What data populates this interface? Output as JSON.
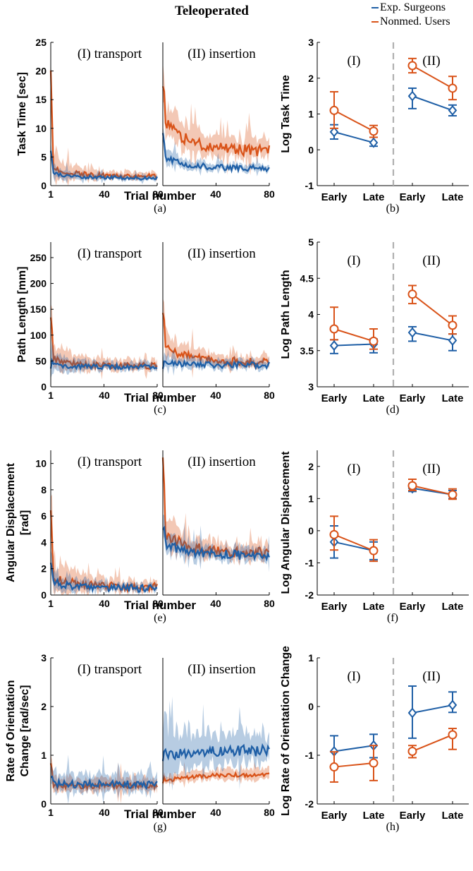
{
  "title": "Teleoperated",
  "legend": {
    "items": [
      {
        "label": "Exp. Surgeons",
        "color": "#1f5fa6"
      },
      {
        "label": "Nonmed. Users",
        "color": "#d95319"
      }
    ],
    "placement": "top-right"
  },
  "colors": {
    "surgeons": "#1f5fa6",
    "nonmed": "#d95319",
    "divider": "#b0b0b0",
    "axis": "#000000"
  },
  "common": {
    "xlabel": "Trial number",
    "x_ticks": [
      "1",
      "40",
      "80"
    ],
    "phase_labels": [
      "(I) transport",
      "(II) insertion"
    ],
    "summary_phase_labels": [
      "(I)",
      "(II)"
    ],
    "summary_categories": [
      "Early",
      "Late",
      "Early",
      "Late"
    ]
  },
  "chart_data": [
    {
      "type": "line",
      "panel_label": "(a)",
      "ylabel": "Task Time [sec]",
      "ylim": [
        0,
        25
      ],
      "y_ticks": [
        "0",
        "5",
        "10",
        "15",
        "20",
        "25"
      ],
      "trial_range": [
        1,
        80
      ],
      "series": [
        {
          "name": "Exp. Surgeons",
          "phase": "I",
          "mean_early": 2.2,
          "mean_late": 1.3,
          "spread_early": 1.0,
          "spread_late": 0.4,
          "start": 6,
          "noise": 0.3
        },
        {
          "name": "Nonmed. Users",
          "phase": "I",
          "mean_early": 3.2,
          "mean_late": 1.6,
          "spread_early": 2.5,
          "spread_late": 0.6,
          "start": 20,
          "noise": 0.4
        },
        {
          "name": "Exp. Surgeons",
          "phase": "II",
          "mean_early": 5.0,
          "mean_late": 3.0,
          "spread_early": 1.5,
          "spread_late": 0.6,
          "start": 9,
          "noise": 0.5
        },
        {
          "name": "Nonmed. Users",
          "phase": "II",
          "mean_early": 11.5,
          "mean_late": 6.0,
          "spread_early": 3.5,
          "spread_late": 1.8,
          "start": 17,
          "noise": 1.0
        }
      ]
    },
    {
      "type": "line",
      "panel_label": "(c)",
      "ylabel": "Path Length [mm]",
      "ylim": [
        0,
        280
      ],
      "y_ticks": [
        "0",
        "50",
        "100",
        "150",
        "200",
        "250"
      ],
      "trial_range": [
        1,
        80
      ],
      "series": [
        {
          "name": "Exp. Surgeons",
          "phase": "I",
          "mean_early": 42,
          "mean_late": 38,
          "spread_early": 20,
          "spread_late": 8,
          "start": 40,
          "noise": 5
        },
        {
          "name": "Nonmed. Users",
          "phase": "I",
          "mean_early": 55,
          "mean_late": 40,
          "spread_early": 30,
          "spread_late": 10,
          "start": 140,
          "noise": 6
        },
        {
          "name": "Exp. Surgeons",
          "phase": "II",
          "mean_early": 45,
          "mean_late": 42,
          "spread_early": 12,
          "spread_late": 10,
          "start": 40,
          "noise": 6
        },
        {
          "name": "Nonmed. Users",
          "phase": "II",
          "mean_early": 80,
          "mean_late": 48,
          "spread_early": 30,
          "spread_late": 12,
          "start": 150,
          "noise": 8
        }
      ]
    },
    {
      "type": "line",
      "panel_label": "(e)",
      "ylabel": "Angular Displacement [rad]",
      "ylim": [
        0,
        11
      ],
      "y_ticks": [
        "0",
        "2",
        "4",
        "6",
        "8",
        "10"
      ],
      "trial_range": [
        1,
        80
      ],
      "series": [
        {
          "name": "Exp. Surgeons",
          "phase": "I",
          "mean_early": 1.0,
          "mean_late": 0.5,
          "spread_early": 0.9,
          "spread_late": 0.3,
          "start": 2.5,
          "noise": 0.3
        },
        {
          "name": "Nonmed. Users",
          "phase": "I",
          "mean_early": 1.4,
          "mean_late": 0.6,
          "spread_early": 1.6,
          "spread_late": 0.4,
          "start": 6.5,
          "noise": 0.3
        },
        {
          "name": "Exp. Surgeons",
          "phase": "II",
          "mean_early": 4.0,
          "mean_late": 3.0,
          "spread_early": 1.0,
          "spread_late": 0.5,
          "start": 5,
          "noise": 0.35
        },
        {
          "name": "Nonmed. Users",
          "phase": "II",
          "mean_early": 4.8,
          "mean_late": 3.2,
          "spread_early": 1.4,
          "spread_late": 0.6,
          "start": 10.5,
          "noise": 0.4
        }
      ]
    },
    {
      "type": "line",
      "panel_label": "(g)",
      "ylabel": "Rate of Orientation Change [rad/sec]",
      "ylim": [
        0,
        3
      ],
      "y_ticks": [
        "0",
        "1",
        "2",
        "3"
      ],
      "trial_range": [
        1,
        80
      ],
      "series": [
        {
          "name": "Exp. Surgeons",
          "phase": "I",
          "mean_early": 0.42,
          "mean_late": 0.4,
          "spread_early": 0.25,
          "spread_late": 0.2,
          "start": 0.5,
          "noise": 0.08
        },
        {
          "name": "Nonmed. Users",
          "phase": "I",
          "mean_early": 0.35,
          "mean_late": 0.38,
          "spread_early": 0.15,
          "spread_late": 0.15,
          "start": 0.8,
          "noise": 0.06
        },
        {
          "name": "Exp. Surgeons",
          "phase": "II",
          "mean_early": 1.0,
          "mean_late": 1.1,
          "spread_early": 0.6,
          "spread_late": 0.35,
          "start": 0.8,
          "noise": 0.12
        },
        {
          "name": "Nonmed. Users",
          "phase": "II",
          "mean_early": 0.45,
          "mean_late": 0.6,
          "spread_early": 0.1,
          "spread_late": 0.12,
          "start": 0.4,
          "noise": 0.04
        }
      ]
    },
    {
      "type": "scatter",
      "panel_label": "(b)",
      "ylabel": "Log Task Time",
      "ylim": [
        -1,
        3
      ],
      "y_ticks": [
        "-1",
        "0",
        "1",
        "2",
        "3"
      ],
      "series": [
        {
          "name": "Exp. Surgeons",
          "marker": "diamond",
          "values": [
            0.5,
            0.2,
            1.5,
            1.1
          ],
          "err_low": [
            0.3,
            0.1,
            1.15,
            0.95
          ],
          "err_high": [
            0.7,
            0.35,
            1.72,
            1.25
          ]
        },
        {
          "name": "Nonmed. Users",
          "marker": "circle",
          "values": [
            1.1,
            0.52,
            2.35,
            1.72
          ],
          "err_low": [
            0.6,
            0.35,
            2.15,
            1.4
          ],
          "err_high": [
            1.62,
            0.68,
            2.55,
            2.05
          ]
        }
      ]
    },
    {
      "type": "scatter",
      "panel_label": "(d)",
      "ylabel": "Log Path Length",
      "ylim": [
        3,
        5
      ],
      "y_ticks": [
        "3",
        "3.5",
        "4",
        "4.5",
        "5"
      ],
      "series": [
        {
          "name": "Exp. Surgeons",
          "marker": "diamond",
          "values": [
            3.57,
            3.59,
            3.75,
            3.64
          ],
          "err_low": [
            3.46,
            3.47,
            3.63,
            3.5
          ],
          "err_high": [
            3.65,
            3.66,
            3.83,
            3.73
          ]
        },
        {
          "name": "Nonmed. Users",
          "marker": "circle",
          "values": [
            3.8,
            3.63,
            4.28,
            3.85
          ],
          "err_low": [
            3.65,
            3.52,
            4.15,
            3.73
          ],
          "err_high": [
            4.1,
            3.8,
            4.4,
            3.98
          ]
        }
      ]
    },
    {
      "type": "scatter",
      "panel_label": "(f)",
      "ylabel": "Log Angular Displacement",
      "ylim": [
        -2,
        2.5
      ],
      "y_ticks": [
        "-2",
        "-1",
        "0",
        "1",
        "2"
      ],
      "series": [
        {
          "name": "Exp. Surgeons",
          "marker": "diamond",
          "values": [
            -0.35,
            -0.62,
            1.32,
            1.12
          ],
          "err_low": [
            -0.85,
            -0.9,
            1.22,
            1.0
          ],
          "err_high": [
            0.15,
            -0.35,
            1.45,
            1.25
          ]
        },
        {
          "name": "Nonmed. Users",
          "marker": "circle",
          "values": [
            -0.12,
            -0.62,
            1.4,
            1.12
          ],
          "err_low": [
            -0.6,
            -0.95,
            1.25,
            0.98
          ],
          "err_high": [
            0.45,
            -0.28,
            1.6,
            1.3
          ]
        }
      ]
    },
    {
      "type": "scatter",
      "panel_label": "(h)",
      "ylabel": "Log Rate of Orientation Change",
      "ylim": [
        -2,
        1
      ],
      "y_ticks": [
        "-2",
        "-1",
        "0",
        "1"
      ],
      "series": [
        {
          "name": "Exp. Surgeons",
          "marker": "diamond",
          "values": [
            -0.92,
            -0.8,
            -0.13,
            0.03
          ],
          "err_low": [
            -1.25,
            -1.05,
            -0.65,
            -0.12
          ],
          "err_high": [
            -0.6,
            -0.57,
            0.42,
            0.3
          ]
        },
        {
          "name": "Nonmed. Users",
          "marker": "circle",
          "values": [
            -1.24,
            -1.16,
            -0.92,
            -0.58
          ],
          "err_low": [
            -1.55,
            -1.52,
            -1.05,
            -0.88
          ],
          "err_high": [
            -0.93,
            -0.8,
            -0.8,
            -0.45
          ]
        }
      ]
    }
  ]
}
